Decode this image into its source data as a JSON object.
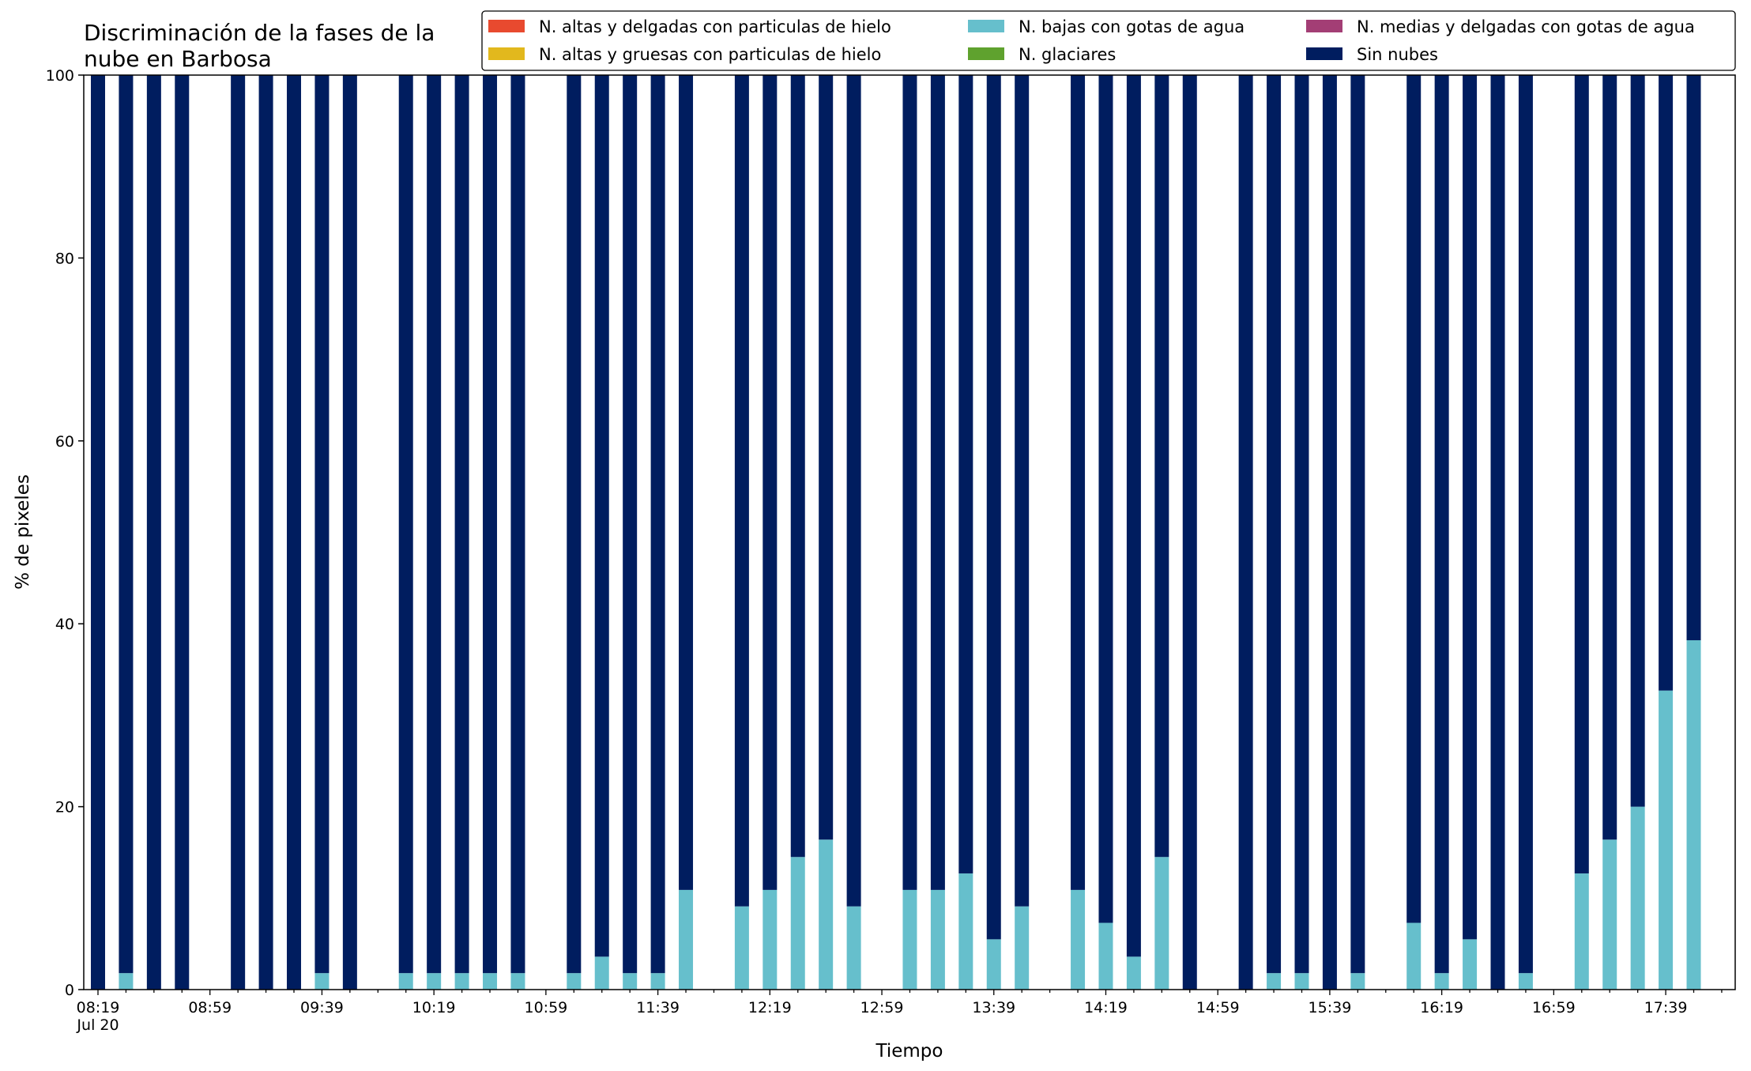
{
  "chart_data": {
    "type": "bar",
    "stacked": true,
    "title_line1": "Discriminación de la fases de la",
    "title_line2": "nube en Barbosa",
    "xlabel": "Tiempo",
    "ylabel": "% de pixeles",
    "ylim": [
      0,
      100
    ],
    "yticks": [
      "0",
      "20",
      "40",
      "60",
      "80",
      "100"
    ],
    "x_start": "08:19",
    "x_interval_minutes": 10,
    "x_count": 59,
    "xtick_labels": [
      "08:19",
      "08:59",
      "09:39",
      "10:19",
      "10:59",
      "11:39",
      "12:19",
      "12:59",
      "13:39",
      "14:19",
      "14:59",
      "15:39",
      "16:19",
      "16:59",
      "17:39"
    ],
    "xtick_date": "Jul 20",
    "grid": false,
    "legend_position": "top-right",
    "colors": {
      "altas_delgadas_hielo": "#e84a2f",
      "altas_gruesas_hielo": "#e2b81d",
      "bajas_agua": "#66bfcc",
      "glaciares": "#5fa22e",
      "medias_delgadas_agua": "#a33e75",
      "sin_nubes": "#001d5f"
    },
    "legend": [
      {
        "label": "N. altas y delgadas con particulas de hielo",
        "color": "#e84a2f"
      },
      {
        "label": "N. altas y gruesas con particulas de hielo",
        "color": "#e2b81d"
      },
      {
        "label": "N. bajas con gotas de agua",
        "color": "#66bfcc"
      },
      {
        "label": "N. glaciares",
        "color": "#5fa22e"
      },
      {
        "label": "N. medias y delgadas con gotas de agua",
        "color": "#a33e75"
      },
      {
        "label": "Sin nubes",
        "color": "#001d5f"
      }
    ],
    "series": [
      {
        "name": "N. bajas con gotas de agua",
        "values": [
          0,
          1.8,
          0,
          0,
          null,
          0,
          0,
          0,
          1.8,
          0,
          null,
          1.8,
          1.8,
          1.8,
          1.8,
          1.8,
          null,
          1.8,
          3.6,
          1.8,
          1.8,
          10.9,
          null,
          9.1,
          10.9,
          14.5,
          16.4,
          9.1,
          null,
          10.9,
          10.9,
          12.7,
          5.5,
          9.1,
          null,
          10.9,
          7.3,
          3.6,
          14.5,
          0,
          null,
          0,
          1.8,
          1.8,
          0,
          1.8,
          null,
          7.3,
          1.8,
          5.5,
          0,
          1.8,
          null,
          12.7,
          16.4,
          20.0,
          32.7,
          38.2,
          null
        ]
      },
      {
        "name": "Sin nubes",
        "values": [
          100,
          98.2,
          100,
          100,
          null,
          100,
          100,
          100,
          98.2,
          100,
          null,
          98.2,
          98.2,
          98.2,
          98.2,
          98.2,
          null,
          98.2,
          96.4,
          98.2,
          98.2,
          89.1,
          null,
          90.9,
          89.1,
          85.5,
          83.6,
          90.9,
          null,
          89.1,
          89.1,
          87.3,
          94.5,
          90.9,
          null,
          89.1,
          92.7,
          96.4,
          85.5,
          100,
          null,
          100,
          98.2,
          98.2,
          100,
          98.2,
          null,
          92.7,
          98.2,
          94.5,
          100,
          98.2,
          null,
          87.3,
          83.6,
          80.0,
          67.3,
          61.8,
          null
        ]
      }
    ]
  }
}
